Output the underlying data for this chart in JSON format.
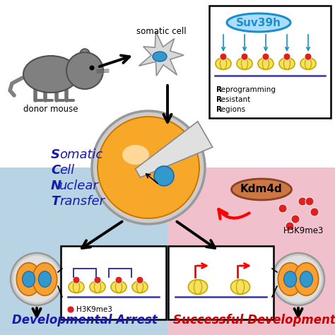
{
  "bg_left_color": "#b8d4e4",
  "bg_right_color": "#f0c0cc",
  "yellow_color": "#f5e060",
  "yellow_dark": "#c8a800",
  "red_dot_color": "#dd2020",
  "blue_color": "#3399cc",
  "orange_color": "#f5a030",
  "orange_dark": "#cc6600",
  "gray_color": "#999999",
  "gray_light": "#cccccc",
  "navy": "#1a1aaa",
  "scnt_lines": [
    "S​omatic",
    "C​ell",
    "N​uclear",
    "T​ransfer"
  ],
  "scnt_bold_chars": [
    "S",
    "C",
    "N",
    "T"
  ],
  "donor_label": "donor mouse",
  "somatic_label": "somatic cell",
  "suv39h_label": "Suv39h",
  "suv39h_color": "#1a8fcc",
  "kdm4d_label": "Kdm4d",
  "kdm4d_bg": "#cc7744",
  "h3k9me3_label": "H3K9me3",
  "rrr_lines": [
    "Reprogramming",
    "Resistant",
    "Regions"
  ],
  "title_left": "Developmental Arrest",
  "title_right": "Successful Development",
  "title_left_color": "#1a1aaa",
  "title_right_color": "#cc0000"
}
